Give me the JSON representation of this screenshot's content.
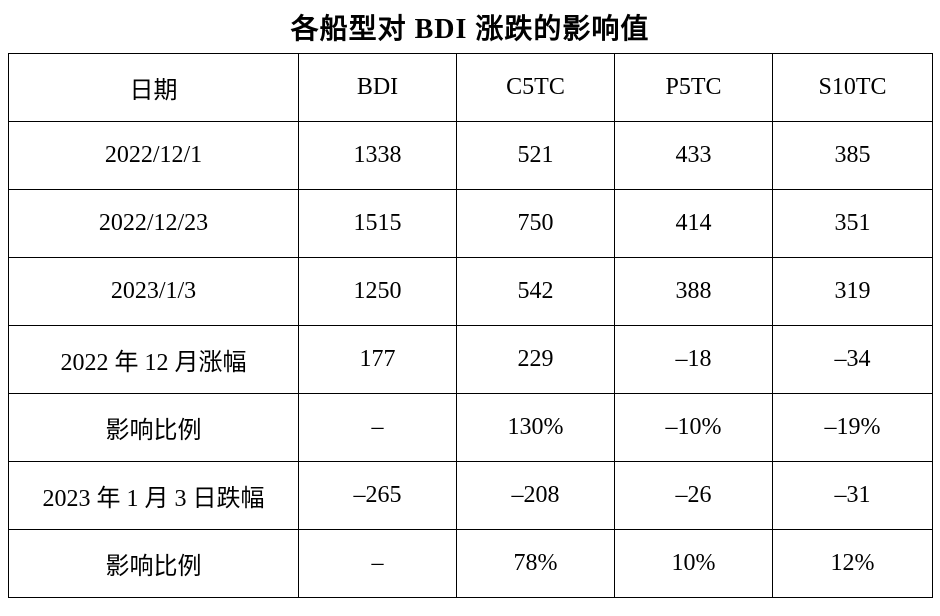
{
  "title": "各船型对 BDI 涨跌的影响值",
  "table": {
    "headers": [
      "日期",
      "BDI",
      "C5TC",
      "P5TC",
      "S10TC"
    ],
    "rows": [
      [
        "2022/12/1",
        "1338",
        "521",
        "433",
        "385"
      ],
      [
        "2022/12/23",
        "1515",
        "750",
        "414",
        "351"
      ],
      [
        "2023/1/3",
        "1250",
        "542",
        "388",
        "319"
      ],
      [
        "2022 年 12 月涨幅",
        "177",
        "229",
        "–18",
        "–34"
      ],
      [
        "影响比例",
        "–",
        "130%",
        "–10%",
        "–19%"
      ],
      [
        "2023 年 1 月 3 日跌幅",
        "–265",
        "–208",
        "–26",
        "–31"
      ],
      [
        "影响比例",
        "–",
        "78%",
        "10%",
        "12%"
      ]
    ]
  }
}
